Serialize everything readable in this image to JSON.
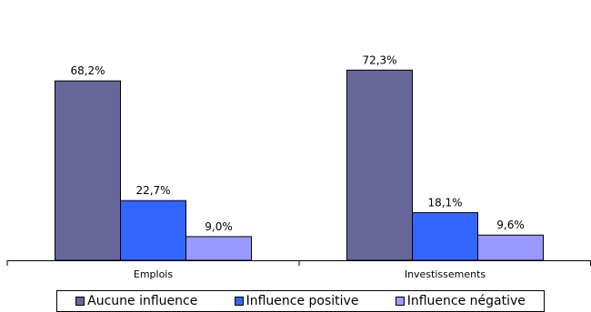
{
  "chart_data": {
    "type": "bar",
    "categories": [
      "Emplois",
      "Investissements"
    ],
    "series": [
      {
        "name": "Aucune influence",
        "values": [
          68.2,
          72.3
        ],
        "labels": [
          "68,2%",
          "72,3%"
        ],
        "color": "#666699"
      },
      {
        "name": "Influence positive",
        "values": [
          22.7,
          18.1
        ],
        "labels": [
          "22,7%",
          "18,1%"
        ],
        "color": "#3366ff"
      },
      {
        "name": "Influence négative",
        "values": [
          9.0,
          9.6
        ],
        "labels": [
          "9,0%",
          "9,6%"
        ],
        "color": "#9999ff"
      }
    ],
    "ylim": [
      0,
      80
    ],
    "grid": false,
    "legend_position": "bottom"
  }
}
